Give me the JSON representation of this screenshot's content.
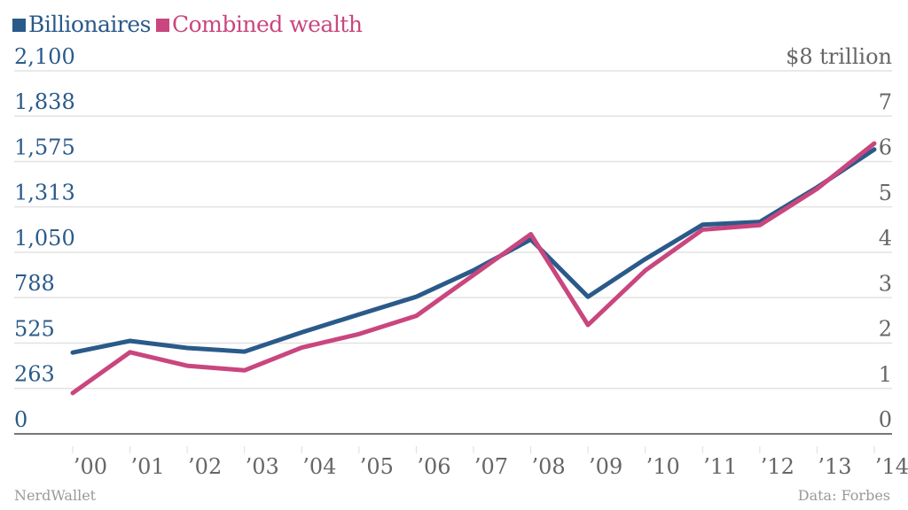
{
  "colors": {
    "billionaires": "#2a5a8a",
    "wealth": "#c9467e",
    "grid": "#e2e2e2",
    "baseline": "#777777",
    "right_axis_text": "#666666",
    "x_tick_text": "#666666",
    "credit_text": "#999999"
  },
  "legend": [
    {
      "label": "Billionaires",
      "series": "billionaires"
    },
    {
      "label": "Combined wealth",
      "series": "wealth"
    }
  ],
  "credits": {
    "source_left": "NerdWallet",
    "source_right": "Data: Forbes"
  },
  "chart_data": {
    "type": "line",
    "title": "",
    "xlabel": "",
    "ylabel": "Billionaires",
    "y2label": "Combined wealth ($ trillion)",
    "categories": [
      "’00",
      "’01",
      "’02",
      "’03",
      "’04",
      "’05",
      "’06",
      "’07",
      "’08",
      "’09",
      "’10",
      "’11",
      "’12",
      "’13",
      "’14"
    ],
    "x": [
      2000,
      2001,
      2002,
      2003,
      2004,
      2005,
      2006,
      2007,
      2008,
      2009,
      2010,
      2011,
      2012,
      2013,
      2014
    ],
    "series": [
      {
        "name": "Billionaires",
        "axis": "left",
        "color": "#2a5a8a",
        "values": [
          470,
          538,
          497,
          476,
          587,
          691,
          793,
          946,
          1125,
          793,
          1011,
          1210,
          1226,
          1426,
          1645
        ]
      },
      {
        "name": "Combined wealth",
        "axis": "right",
        "unit": "$ trillion",
        "color": "#c9467e",
        "values": [
          0.9,
          1.8,
          1.5,
          1.4,
          1.9,
          2.2,
          2.6,
          3.5,
          4.4,
          2.4,
          3.6,
          4.5,
          4.6,
          5.4,
          6.4
        ]
      }
    ],
    "y_left": {
      "ylim": [
        0,
        2100
      ],
      "ticks": [
        0,
        263,
        525,
        788,
        1050,
        1313,
        1575,
        1838,
        2100
      ],
      "tick_labels": [
        "0",
        "263",
        "525",
        "788",
        "1,050",
        "1,313",
        "1,575",
        "1,838",
        "2,100"
      ]
    },
    "y_right": {
      "ylim": [
        0,
        8
      ],
      "ticks": [
        0,
        1,
        2,
        3,
        4,
        5,
        6,
        7,
        8
      ],
      "tick_labels": [
        "0",
        "1",
        "2",
        "3",
        "4",
        "5",
        "6",
        "7",
        "$8 trillion"
      ]
    },
    "grid": true,
    "legend_position": "top-left"
  }
}
